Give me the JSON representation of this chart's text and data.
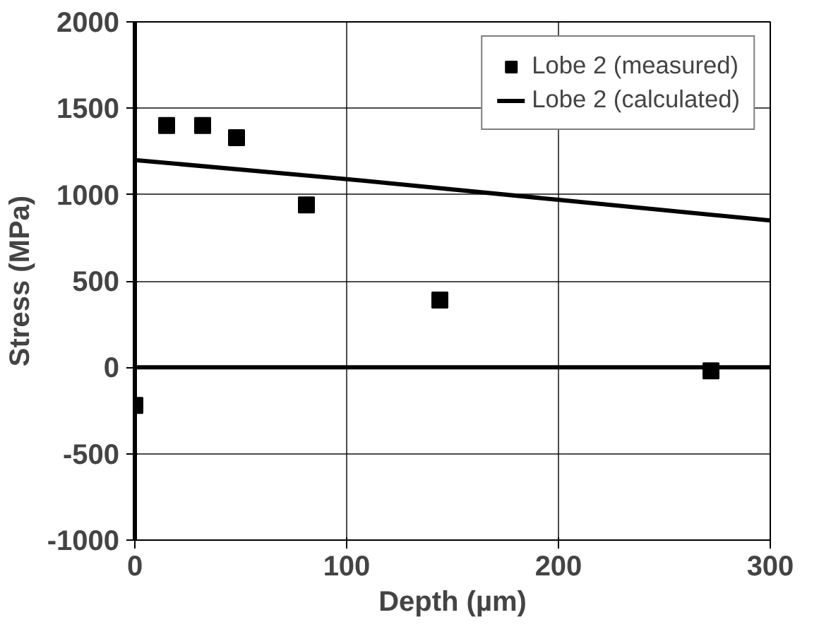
{
  "chart_data": {
    "type": "scatter",
    "xlabel": "Depth (µm)",
    "ylabel": "Stress (MPa)",
    "xlim": [
      0,
      300
    ],
    "ylim": [
      -1000,
      2000
    ],
    "xticks": [
      0,
      100,
      200,
      300
    ],
    "yticks": [
      -1000,
      -500,
      0,
      500,
      1000,
      1500,
      2000
    ],
    "grid": true,
    "legend": "top right",
    "series": [
      {
        "name": "Lobe 2 (measured)",
        "marker": "square",
        "color": "#000000",
        "x": [
          0,
          15,
          32,
          48,
          81,
          144,
          272
        ],
        "values": [
          -220,
          1400,
          1400,
          1330,
          940,
          390,
          -20
        ]
      },
      {
        "name": "Lobe 2 (calculated)",
        "type": "line",
        "marker": "none",
        "line_style": "solid",
        "color": "#000000",
        "x": [
          0,
          100,
          200,
          300
        ],
        "values": [
          1200,
          1090,
          970,
          850
        ]
      }
    ]
  }
}
